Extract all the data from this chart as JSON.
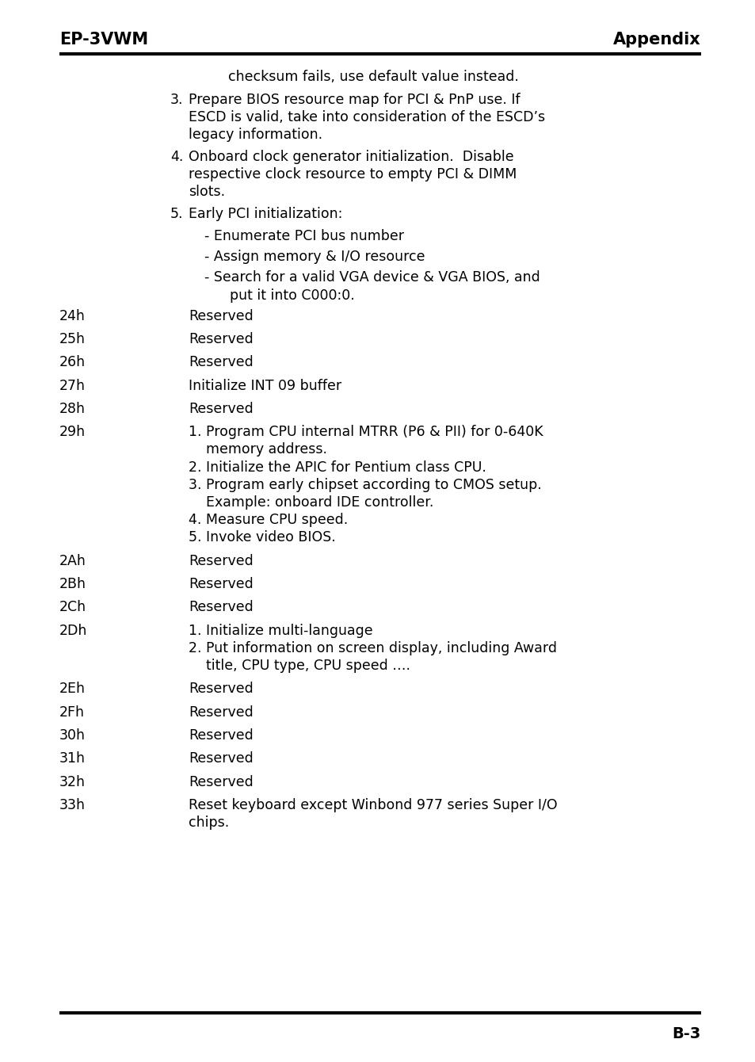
{
  "header_left": "EP-3VWM",
  "header_right": "Appendix",
  "footer_right": "B-3",
  "bg_color": "#ffffff",
  "text_color": "#000000",
  "font_size": 12.5,
  "header_font_size": 15,
  "footer_font_size": 14,
  "content": [
    {
      "type": "continuation",
      "text": "checksum fails, use default value instead."
    },
    {
      "type": "numbered",
      "num": "3.",
      "lines": [
        "Prepare BIOS resource map for PCI & PnP use. If",
        "ESCD is valid, take into consideration of the ESCD’s",
        "legacy information."
      ]
    },
    {
      "type": "numbered",
      "num": "4.",
      "lines": [
        "Onboard clock generator initialization.  Disable",
        "respective clock resource to empty PCI & DIMM",
        "slots."
      ]
    },
    {
      "type": "numbered",
      "num": "5.",
      "lines": [
        "Early PCI initialization:"
      ]
    },
    {
      "type": "sub_bullet",
      "lines": [
        "- Enumerate PCI bus number"
      ]
    },
    {
      "type": "sub_bullet",
      "lines": [
        "- Assign memory & I/O resource"
      ]
    },
    {
      "type": "sub_bullet",
      "lines": [
        "- Search for a valid VGA device & VGA BIOS, and",
        "  put it into C000:0."
      ]
    },
    {
      "type": "entry",
      "code": "24h",
      "lines": [
        "Reserved"
      ]
    },
    {
      "type": "entry",
      "code": "25h",
      "lines": [
        "Reserved"
      ]
    },
    {
      "type": "entry",
      "code": "26h",
      "lines": [
        "Reserved"
      ]
    },
    {
      "type": "entry",
      "code": "27h",
      "lines": [
        "Initialize INT 09 buffer"
      ]
    },
    {
      "type": "entry",
      "code": "28h",
      "lines": [
        "Reserved"
      ]
    },
    {
      "type": "entry",
      "code": "29h",
      "lines": [
        "1. Program CPU internal MTRR (P6 & PII) for 0-640K",
        "   memory address.",
        "2. Initialize the APIC for Pentium class CPU.",
        "3. Program early chipset according to CMOS setup.",
        "   Example: onboard IDE controller.",
        "4. Measure CPU speed.",
        "5. Invoke video BIOS."
      ]
    },
    {
      "type": "entry",
      "code": "2Ah",
      "lines": [
        "Reserved"
      ]
    },
    {
      "type": "entry",
      "code": "2Bh",
      "lines": [
        "Reserved"
      ]
    },
    {
      "type": "entry",
      "code": "2Ch",
      "lines": [
        "Reserved"
      ]
    },
    {
      "type": "entry",
      "code": "2Dh",
      "lines": [
        "1. Initialize multi-language",
        "2. Put information on screen display, including Award",
        "   title, CPU type, CPU speed …."
      ]
    },
    {
      "type": "entry",
      "code": "2Eh",
      "lines": [
        "Reserved"
      ]
    },
    {
      "type": "entry",
      "code": "2Fh",
      "lines": [
        "Reserved"
      ]
    },
    {
      "type": "entry",
      "code": "30h",
      "lines": [
        "Reserved"
      ]
    },
    {
      "type": "entry",
      "code": "31h",
      "lines": [
        "Reserved"
      ]
    },
    {
      "type": "entry",
      "code": "32h",
      "lines": [
        "Reserved"
      ]
    },
    {
      "type": "entry",
      "code": "33h",
      "lines": [
        "Reset keyboard except Winbond 977 series Super I/O",
        "chips."
      ]
    }
  ]
}
